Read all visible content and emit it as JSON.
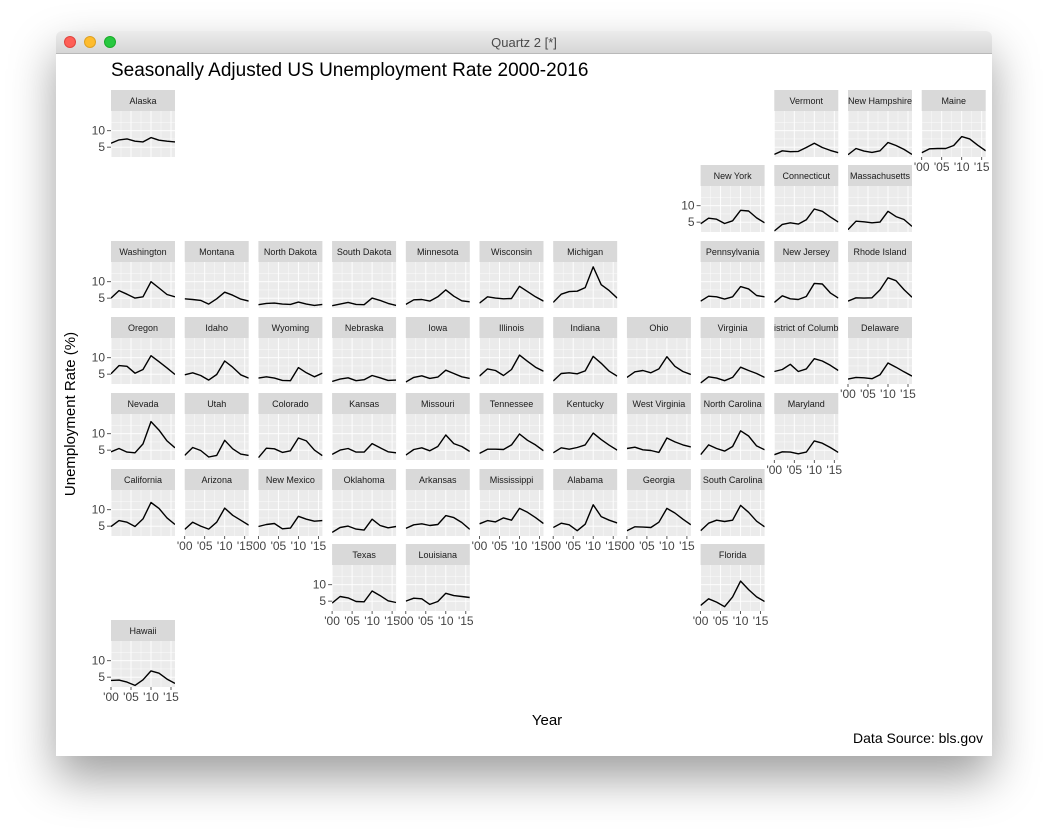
{
  "window": {
    "title": "Quartz 2 [*]"
  },
  "chart_data": {
    "type": "line",
    "title": "Seasonally Adjusted US Unemployment Rate 2000-2016",
    "xlabel": "Year",
    "ylabel": "Unemployment Rate (%)",
    "caption": "Data Source: bls.gov",
    "x": [
      2000,
      2002,
      2004,
      2006,
      2008,
      2010,
      2012,
      2014,
      2016
    ],
    "x_tick_labels": [
      "'00",
      "'05",
      "'10",
      "'15"
    ],
    "y_ticks": [
      5,
      10
    ],
    "ylim": [
      2,
      16
    ],
    "xlim": [
      2000,
      2016
    ],
    "grid": true,
    "series": [
      {
        "name": "Alaska",
        "values": [
          6.2,
          7.2,
          7.5,
          6.8,
          6.6,
          7.9,
          7.1,
          6.8,
          6.6
        ]
      },
      {
        "name": "Vermont",
        "values": [
          2.8,
          3.9,
          3.6,
          3.7,
          4.9,
          6.2,
          4.9,
          4.0,
          3.3
        ]
      },
      {
        "name": "New Hampshire",
        "values": [
          2.7,
          4.6,
          3.8,
          3.4,
          3.9,
          6.4,
          5.5,
          4.3,
          2.8
        ]
      },
      {
        "name": "Maine",
        "values": [
          3.3,
          4.5,
          4.6,
          4.6,
          5.5,
          8.2,
          7.5,
          5.6,
          3.9
        ]
      },
      {
        "name": "New York",
        "values": [
          4.5,
          6.2,
          5.9,
          4.6,
          5.4,
          8.6,
          8.4,
          6.3,
          4.8
        ]
      },
      {
        "name": "Connecticut",
        "values": [
          2.3,
          4.3,
          4.8,
          4.4,
          5.7,
          9.0,
          8.3,
          6.6,
          5.0
        ]
      },
      {
        "name": "Massachusetts",
        "values": [
          2.7,
          5.3,
          5.1,
          4.8,
          5.0,
          8.3,
          6.7,
          5.8,
          3.7
        ]
      },
      {
        "name": "Washington",
        "values": [
          5.0,
          7.3,
          6.2,
          5.0,
          5.4,
          10.0,
          8.1,
          6.1,
          5.4
        ]
      },
      {
        "name": "Montana",
        "values": [
          4.8,
          4.6,
          4.3,
          3.2,
          4.8,
          6.8,
          5.9,
          4.7,
          4.1
        ]
      },
      {
        "name": "North Dakota",
        "values": [
          3.0,
          3.4,
          3.5,
          3.2,
          3.1,
          3.8,
          3.2,
          2.8,
          3.1
        ]
      },
      {
        "name": "South Dakota",
        "values": [
          2.7,
          3.2,
          3.7,
          3.1,
          3.0,
          5.0,
          4.3,
          3.4,
          2.8
        ]
      },
      {
        "name": "Minnesota",
        "values": [
          3.1,
          4.5,
          4.6,
          4.1,
          5.4,
          7.5,
          5.6,
          4.2,
          3.9
        ]
      },
      {
        "name": "Wisconsin",
        "values": [
          3.5,
          5.4,
          5.0,
          4.8,
          4.9,
          8.6,
          7.0,
          5.4,
          4.1
        ]
      },
      {
        "name": "Michigan",
        "values": [
          3.7,
          6.2,
          7.0,
          7.1,
          8.2,
          14.5,
          9.1,
          7.3,
          5.0
        ]
      },
      {
        "name": "Pennsylvania",
        "values": [
          4.1,
          5.6,
          5.4,
          4.7,
          5.4,
          8.5,
          7.8,
          5.8,
          5.4
        ]
      },
      {
        "name": "New Jersey",
        "values": [
          3.7,
          5.7,
          4.8,
          4.6,
          5.5,
          9.5,
          9.3,
          6.6,
          5.0
        ]
      },
      {
        "name": "Rhode Island",
        "values": [
          4.1,
          5.1,
          5.0,
          5.1,
          7.5,
          11.2,
          10.3,
          7.6,
          5.3
        ]
      },
      {
        "name": "Oregon",
        "values": [
          5.1,
          7.6,
          7.4,
          5.3,
          6.4,
          10.6,
          8.8,
          6.9,
          4.9
        ]
      },
      {
        "name": "Idaho",
        "values": [
          4.8,
          5.4,
          4.6,
          3.2,
          4.9,
          9.0,
          7.1,
          4.8,
          3.8
        ]
      },
      {
        "name": "Wyoming",
        "values": [
          3.8,
          4.2,
          3.8,
          3.1,
          3.0,
          7.0,
          5.4,
          4.2,
          5.3
        ]
      },
      {
        "name": "Nebraska",
        "values": [
          2.8,
          3.5,
          3.9,
          3.0,
          3.3,
          4.6,
          3.9,
          3.1,
          3.2
        ]
      },
      {
        "name": "Iowa",
        "values": [
          2.6,
          4.0,
          4.5,
          3.7,
          4.1,
          6.2,
          5.2,
          4.2,
          3.7
        ]
      },
      {
        "name": "Illinois",
        "values": [
          4.4,
          6.6,
          6.1,
          4.6,
          6.4,
          10.8,
          8.9,
          7.1,
          5.9
        ]
      },
      {
        "name": "Indiana",
        "values": [
          2.9,
          5.2,
          5.4,
          5.1,
          6.0,
          10.4,
          8.3,
          5.9,
          4.4
        ]
      },
      {
        "name": "Ohio",
        "values": [
          4.0,
          5.7,
          6.1,
          5.4,
          6.6,
          10.3,
          7.4,
          5.8,
          4.9
        ]
      },
      {
        "name": "Virginia",
        "values": [
          2.3,
          4.2,
          3.8,
          3.0,
          4.0,
          7.1,
          6.1,
          5.2,
          4.0
        ]
      },
      {
        "name": "District of Columbia",
        "values": [
          5.8,
          6.4,
          8.0,
          5.8,
          6.6,
          9.7,
          9.0,
          7.7,
          6.1
        ]
      },
      {
        "name": "Delaware",
        "values": [
          3.5,
          4.0,
          3.9,
          3.6,
          4.8,
          8.4,
          7.1,
          5.7,
          4.4
        ]
      },
      {
        "name": "Nevada",
        "values": [
          4.5,
          5.5,
          4.4,
          4.2,
          6.9,
          13.7,
          11.1,
          7.8,
          5.7
        ]
      },
      {
        "name": "Utah",
        "values": [
          3.4,
          5.8,
          4.9,
          2.9,
          3.4,
          8.0,
          5.4,
          3.8,
          3.4
        ]
      },
      {
        "name": "Colorado",
        "values": [
          2.7,
          5.6,
          5.4,
          4.3,
          4.8,
          8.7,
          7.8,
          5.0,
          3.3
        ]
      },
      {
        "name": "Kansas",
        "values": [
          3.7,
          5.0,
          5.5,
          4.4,
          4.4,
          7.0,
          5.7,
          4.5,
          4.2
        ]
      },
      {
        "name": "Missouri",
        "values": [
          3.5,
          5.2,
          5.7,
          4.8,
          6.1,
          9.6,
          7.0,
          6.1,
          4.6
        ]
      },
      {
        "name": "Tennessee",
        "values": [
          4.0,
          5.3,
          5.3,
          5.2,
          6.6,
          9.9,
          8.0,
          6.6,
          4.8
        ]
      },
      {
        "name": "Kentucky",
        "values": [
          4.2,
          5.7,
          5.3,
          5.8,
          6.6,
          10.2,
          8.2,
          6.5,
          5.0
        ]
      },
      {
        "name": "West Virginia",
        "values": [
          5.5,
          5.9,
          5.1,
          4.9,
          4.3,
          8.7,
          7.5,
          6.6,
          6.0
        ]
      },
      {
        "name": "North Carolina",
        "values": [
          3.6,
          6.6,
          5.5,
          4.7,
          6.1,
          10.9,
          9.3,
          6.3,
          5.1
        ]
      },
      {
        "name": "Maryland",
        "values": [
          3.6,
          4.5,
          4.4,
          3.9,
          4.4,
          7.8,
          7.1,
          5.8,
          4.3
        ]
      },
      {
        "name": "California",
        "values": [
          4.9,
          6.7,
          6.2,
          4.9,
          7.2,
          12.2,
          10.4,
          7.5,
          5.5
        ]
      },
      {
        "name": "Arizona",
        "values": [
          4.0,
          6.2,
          5.0,
          4.1,
          6.2,
          10.5,
          8.3,
          6.8,
          5.3
        ]
      },
      {
        "name": "New Mexico",
        "values": [
          4.9,
          5.5,
          5.8,
          4.2,
          4.4,
          8.0,
          7.1,
          6.5,
          6.7
        ]
      },
      {
        "name": "Oklahoma",
        "values": [
          3.1,
          4.6,
          5.0,
          4.1,
          3.8,
          7.1,
          5.2,
          4.5,
          4.9
        ]
      },
      {
        "name": "Arkansas",
        "values": [
          4.3,
          5.4,
          5.7,
          5.2,
          5.5,
          8.2,
          7.6,
          6.1,
          4.0
        ]
      },
      {
        "name": "Mississippi",
        "values": [
          5.7,
          6.7,
          6.3,
          7.5,
          6.8,
          10.4,
          9.2,
          7.6,
          5.8
        ]
      },
      {
        "name": "Alabama",
        "values": [
          4.6,
          5.9,
          5.4,
          3.6,
          5.6,
          11.5,
          7.9,
          6.8,
          6.0
        ]
      },
      {
        "name": "Georgia",
        "values": [
          3.6,
          4.8,
          4.7,
          4.6,
          6.2,
          10.4,
          9.0,
          7.1,
          5.4
        ]
      },
      {
        "name": "South Carolina",
        "values": [
          3.6,
          5.9,
          6.8,
          6.4,
          6.8,
          11.3,
          9.2,
          6.5,
          4.8
        ]
      },
      {
        "name": "Texas",
        "values": [
          4.4,
          6.4,
          6.0,
          4.9,
          4.8,
          8.1,
          6.7,
          5.1,
          4.6
        ]
      },
      {
        "name": "Louisiana",
        "values": [
          5.0,
          5.9,
          5.7,
          4.0,
          4.9,
          7.4,
          6.7,
          6.4,
          6.1
        ]
      },
      {
        "name": "Florida",
        "values": [
          3.7,
          5.7,
          4.7,
          3.3,
          6.3,
          11.1,
          8.5,
          6.3,
          4.9
        ]
      },
      {
        "name": "Hawaii",
        "values": [
          4.0,
          4.1,
          3.5,
          2.5,
          4.2,
          6.9,
          6.2,
          4.4,
          3.1
        ]
      }
    ],
    "panel_labels": [
      {
        "state": "Alaska",
        "strip": "Alaska"
      },
      {
        "state": "Vermont",
        "strip": "Vermont"
      },
      {
        "state": "New Hampshire",
        "strip": "New Hampshire"
      },
      {
        "state": "Maine",
        "strip": "Maine"
      },
      {
        "state": "New York",
        "strip": "New York"
      },
      {
        "state": "Connecticut",
        "strip": "Connecticut"
      },
      {
        "state": "Massachusetts",
        "strip": "Massachusetts"
      },
      {
        "state": "Washington",
        "strip": "Washington"
      },
      {
        "state": "Montana",
        "strip": "Montana"
      },
      {
        "state": "North Dakota",
        "strip": "North Dakota"
      },
      {
        "state": "South Dakota",
        "strip": "South Dakota"
      },
      {
        "state": "Minnesota",
        "strip": "Minnesota"
      },
      {
        "state": "Wisconsin",
        "strip": "Wisconsin"
      },
      {
        "state": "Michigan",
        "strip": "Michigan"
      },
      {
        "state": "Pennsylvania",
        "strip": "Pennsylvania"
      },
      {
        "state": "New Jersey",
        "strip": "New Jersey"
      },
      {
        "state": "Rhode Island",
        "strip": "Rhode Island"
      },
      {
        "state": "Oregon",
        "strip": "Oregon"
      },
      {
        "state": "Idaho",
        "strip": "Idaho"
      },
      {
        "state": "Wyoming",
        "strip": "Wyoming"
      },
      {
        "state": "Nebraska",
        "strip": "Nebraska"
      },
      {
        "state": "Iowa",
        "strip": "Iowa"
      },
      {
        "state": "Illinois",
        "strip": "Illinois"
      },
      {
        "state": "Indiana",
        "strip": "Indiana"
      },
      {
        "state": "Ohio",
        "strip": "Ohio"
      },
      {
        "state": "Virginia",
        "strip": "Virginia"
      },
      {
        "state": "District of Columbia",
        "strip": "istrict of Columb"
      },
      {
        "state": "Delaware",
        "strip": "Delaware"
      },
      {
        "state": "Nevada",
        "strip": "Nevada"
      },
      {
        "state": "Utah",
        "strip": "Utah"
      },
      {
        "state": "Colorado",
        "strip": "Colorado"
      },
      {
        "state": "Kansas",
        "strip": "Kansas"
      },
      {
        "state": "Missouri",
        "strip": "Missouri"
      },
      {
        "state": "Tennessee",
        "strip": "Tennessee"
      },
      {
        "state": "Kentucky",
        "strip": "Kentucky"
      },
      {
        "state": "West Virginia",
        "strip": "West Virginia"
      },
      {
        "state": "North Carolina",
        "strip": "North Carolina"
      },
      {
        "state": "Maryland",
        "strip": "Maryland"
      },
      {
        "state": "California",
        "strip": "California"
      },
      {
        "state": "Arizona",
        "strip": "Arizona"
      },
      {
        "state": "New Mexico",
        "strip": "New Mexico"
      },
      {
        "state": "Oklahoma",
        "strip": "Oklahoma"
      },
      {
        "state": "Arkansas",
        "strip": "Arkansas"
      },
      {
        "state": "Mississippi",
        "strip": "Mississippi"
      },
      {
        "state": "Alabama",
        "strip": "Alabama"
      },
      {
        "state": "Georgia",
        "strip": "Georgia"
      },
      {
        "state": "South Carolina",
        "strip": "South Carolina"
      },
      {
        "state": "Texas",
        "strip": "Texas"
      },
      {
        "state": "Louisiana",
        "strip": "Louisiana"
      },
      {
        "state": "Florida",
        "strip": "Florida"
      },
      {
        "state": "Hawaii",
        "strip": "Hawaii"
      }
    ]
  }
}
